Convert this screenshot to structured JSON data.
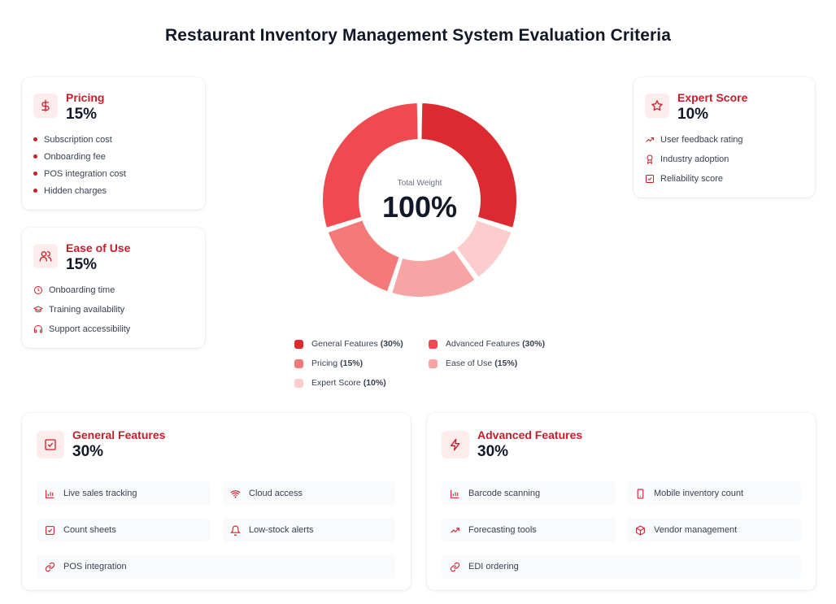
{
  "title": "Restaurant Inventory Management System Evaluation Criteria",
  "colors": {
    "accent": "#c81e2a",
    "general": "#dc2a30",
    "advanced": "#ef4a4f",
    "pricing": "#f47a7a",
    "ease": "#f9a4a4",
    "expert": "#fdcccc"
  },
  "pricing": {
    "title": "Pricing",
    "percent": "15%",
    "icon": "dollar-icon",
    "items": [
      "Subscription cost",
      "Onboarding fee",
      "POS integration cost",
      "Hidden charges"
    ]
  },
  "ease": {
    "title": "Ease of Use",
    "percent": "15%",
    "icon": "users-icon",
    "items": [
      {
        "label": "Onboarding time",
        "icon": "clock-icon"
      },
      {
        "label": "Training availability",
        "icon": "graduation-cap-icon"
      },
      {
        "label": "Support accessibility",
        "icon": "headphones-icon"
      }
    ]
  },
  "expert": {
    "title": "Expert Score",
    "percent": "10%",
    "icon": "star-icon",
    "items": [
      {
        "label": "User feedback rating",
        "icon": "trending-up-icon"
      },
      {
        "label": "Industry adoption",
        "icon": "award-icon"
      },
      {
        "label": "Reliability score",
        "icon": "check-square-icon"
      }
    ]
  },
  "general": {
    "title": "General Features",
    "percent": "30%",
    "icon": "check-square-icon",
    "items": [
      {
        "label": "Live sales tracking",
        "icon": "bar-chart-icon"
      },
      {
        "label": "Cloud access",
        "icon": "wifi-icon"
      },
      {
        "label": "Count sheets",
        "icon": "check-square-icon"
      },
      {
        "label": "Low-stock alerts",
        "icon": "bell-icon"
      },
      {
        "label": "POS integration",
        "icon": "link-icon"
      }
    ]
  },
  "advanced": {
    "title": "Advanced Features",
    "percent": "30%",
    "icon": "zap-icon",
    "items": [
      {
        "label": "Barcode scanning",
        "icon": "bar-chart-icon"
      },
      {
        "label": "Mobile inventory count",
        "icon": "smartphone-icon"
      },
      {
        "label": "Forecasting tools",
        "icon": "trending-up-icon"
      },
      {
        "label": "Vendor management",
        "icon": "package-icon"
      },
      {
        "label": "EDI ordering",
        "icon": "link-icon"
      }
    ]
  },
  "chart_data": {
    "type": "pie",
    "categories": [
      "General Features",
      "Advanced Features",
      "Pricing",
      "Ease of Use",
      "Expert Score"
    ],
    "values": [
      30,
      30,
      15,
      15,
      10
    ],
    "center_label": "Total Weight",
    "center_value": "100%",
    "legend": [
      {
        "label": "General Features",
        "value": "(30%)"
      },
      {
        "label": "Advanced Features",
        "value": "(30%)"
      },
      {
        "label": "Pricing",
        "value": "(15%)"
      },
      {
        "label": "Ease of Use",
        "value": "(15%)"
      },
      {
        "label": "Expert Score",
        "value": "(10%)"
      }
    ],
    "legend_placement": "bottom"
  }
}
